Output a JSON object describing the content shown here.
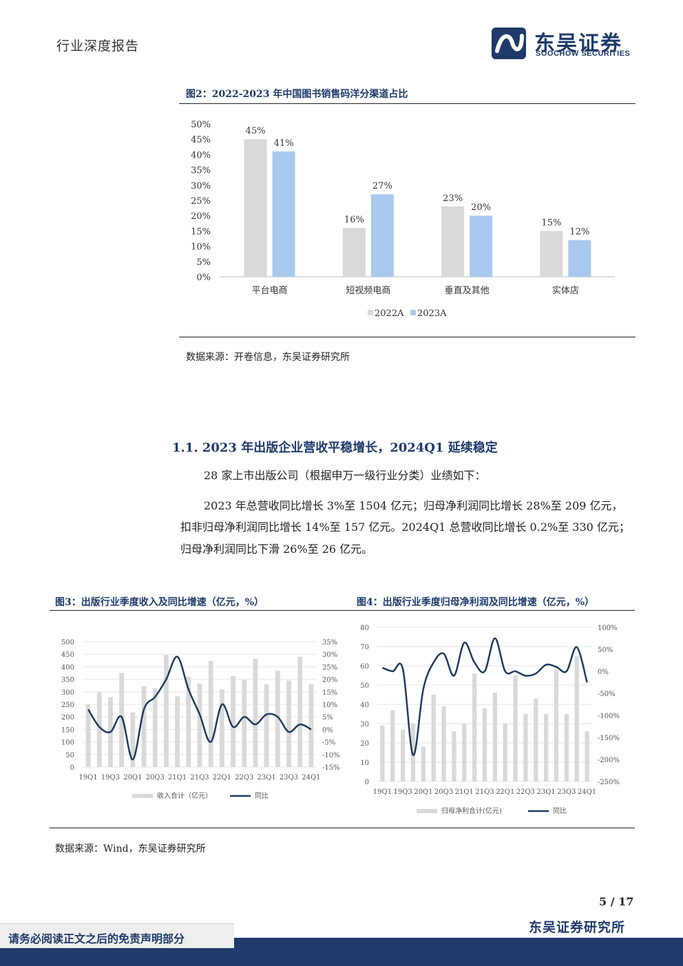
{
  "header": {
    "report_type": "行业深度报告",
    "brand_cn": "东吴证券",
    "brand_en": "SOOCHOW SECURITIES"
  },
  "figure2": {
    "title": "图2：2022-2023 年中国图书销售码洋分渠道占比",
    "source": "数据来源：开卷信息，东吴证券研究所",
    "chart_data": {
      "type": "bar",
      "categories": [
        "平台电商",
        "短视频电商",
        "垂直及其他",
        "实体店"
      ],
      "series": [
        {
          "name": "2022A",
          "values": [
            45,
            16,
            23,
            15
          ],
          "color": "#d9d9d9"
        },
        {
          "name": "2023A",
          "values": [
            41,
            27,
            20,
            12
          ],
          "color": "#a9c9ee"
        }
      ],
      "yticks": [
        "0%",
        "5%",
        "10%",
        "15%",
        "20%",
        "25%",
        "30%",
        "35%",
        "40%",
        "45%",
        "50%"
      ],
      "ylim": [
        0,
        50
      ],
      "value_suffix": "%",
      "legend_position": "bottom"
    }
  },
  "section": {
    "title": "1.1.   2023 年出版企业营收平稳增长，2024Q1 延续稳定",
    "p1": "28 家上市出版公司（根据申万一级行业分类）业绩如下：",
    "p2_l1": "2023 年总营收同比增长 3%至 1504 亿元；归母净利润同比增长 28%至 209 亿元，",
    "p2_l2": "扣非归母净利润同比增长 14%至 157 亿元。2024Q1 总营收同比增长 0.2%至 330 亿元；",
    "p2_l3": "归母净利润同比下滑 26%至 26 亿元。"
  },
  "figure3": {
    "title": "图3：出版行业季度收入及同比增速（亿元，%）",
    "chart_data": {
      "type": "bar+line",
      "x": [
        "19Q1",
        "19Q2",
        "19Q3",
        "19Q4",
        "20Q1",
        "20Q2",
        "20Q3",
        "20Q4",
        "21Q1",
        "21Q2",
        "21Q3",
        "21Q4",
        "22Q1",
        "22Q2",
        "22Q3",
        "22Q4",
        "23Q1",
        "23Q2",
        "23Q3",
        "23Q4",
        "24Q1"
      ],
      "xticks": [
        "19Q1",
        "19Q3",
        "20Q1",
        "20Q3",
        "21Q1",
        "21Q3",
        "22Q1",
        "22Q3",
        "23Q1",
        "23Q3",
        "24Q1"
      ],
      "bars": {
        "name": "收入合计（亿元）",
        "values": [
          250,
          298,
          278,
          376,
          218,
          322,
          315,
          447,
          282,
          360,
          333,
          423,
          310,
          363,
          348,
          432,
          330,
          384,
          345,
          440,
          330
        ]
      },
      "line": {
        "name": "同比",
        "values": [
          8,
          1,
          -1,
          5,
          -12,
          8,
          13,
          20,
          29,
          16,
          6,
          -5,
          10,
          1,
          5,
          2,
          6,
          5,
          -1,
          2,
          0
        ]
      },
      "yleft_ticks": [
        "0",
        "50",
        "100",
        "150",
        "200",
        "250",
        "300",
        "350",
        "400",
        "450",
        "500"
      ],
      "yleft_lim": [
        0,
        500
      ],
      "yright_ticks": [
        "-15%",
        "-10%",
        "-5%",
        "0%",
        "5%",
        "10%",
        "15%",
        "20%",
        "25%",
        "30%",
        "35%"
      ],
      "yright_lim": [
        -15,
        35
      ],
      "bar_color": "#d9d9d9",
      "line_color": "#1f3a5f"
    }
  },
  "figure4": {
    "title": "图4：出版行业季度归母净利润及同比增速（亿元，%）",
    "chart_data": {
      "type": "bar+line",
      "x": [
        "19Q1",
        "19Q2",
        "19Q3",
        "19Q4",
        "20Q1",
        "20Q2",
        "20Q3",
        "20Q4",
        "21Q1",
        "21Q2",
        "21Q3",
        "21Q4",
        "22Q1",
        "22Q2",
        "22Q3",
        "22Q4",
        "23Q1",
        "23Q2",
        "23Q3",
        "23Q4",
        "24Q1"
      ],
      "xticks": [
        "19Q1",
        "19Q3",
        "20Q1",
        "20Q3",
        "21Q1",
        "21Q3",
        "22Q1",
        "22Q3",
        "23Q1",
        "23Q3",
        "24Q1"
      ],
      "bars": {
        "name": "归母净利合计(亿元)",
        "values": [
          29,
          37,
          27,
          30,
          18,
          45,
          39,
          26,
          30,
          56,
          38,
          46,
          30,
          55,
          35,
          43,
          35,
          58,
          35,
          65,
          26
        ]
      },
      "line": {
        "name": "同比",
        "values": [
          8,
          0,
          5,
          -190,
          -40,
          20,
          40,
          -10,
          65,
          20,
          0,
          75,
          0,
          0,
          -10,
          -5,
          15,
          10,
          0,
          55,
          -25
        ]
      },
      "yleft_ticks": [
        "0",
        "10",
        "20",
        "30",
        "40",
        "50",
        "60",
        "70",
        "80"
      ],
      "yleft_lim": [
        0,
        80
      ],
      "yright_ticks": [
        "-250%",
        "-200%",
        "-150%",
        "-100%",
        "-50%",
        "0%",
        "50%",
        "100%"
      ],
      "yright_lim": [
        -250,
        100
      ],
      "bar_color": "#d9d9d9",
      "line_color": "#1f3a5f"
    }
  },
  "bottom_source": "数据来源：Wind，东吴证券研究所",
  "footer": {
    "page": "5  /  17",
    "brand": "东吴证券研究所",
    "disclaimer": "请务必阅读正文之后的免责声明部分"
  }
}
